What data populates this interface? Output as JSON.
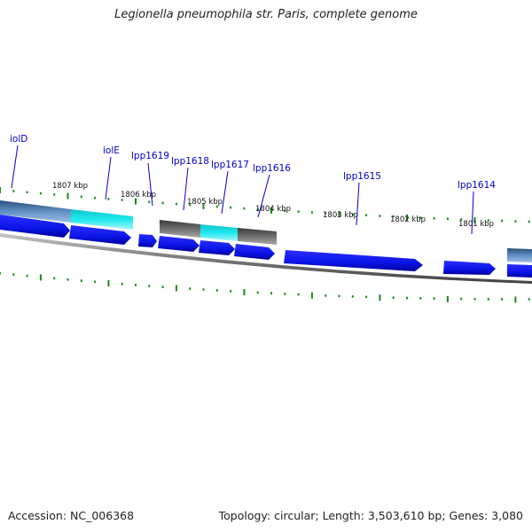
{
  "title": "Legionella pneumophila str. Paris, complete genome",
  "footer": {
    "accession": "Accession: NC_006368",
    "summary": "Topology: circular; Length: 3,503,610 bp; Genes: 3,080"
  },
  "colors": {
    "cds": "#0a14e6",
    "feature_blue": "#3f78b4",
    "feature_grey": "#6a6a6a",
    "highlight": "#19e4ee",
    "label": "#0000cc",
    "ticks": "#1a8a1a",
    "backbone": "#8a8a8a"
  },
  "gene_labels": [
    {
      "id": "iolD",
      "text": "iolD"
    },
    {
      "id": "iolE",
      "text": "iolE"
    },
    {
      "id": "lpp1619",
      "text": "lpp1619"
    },
    {
      "id": "lpp1618",
      "text": "lpp1618"
    },
    {
      "id": "lpp1617",
      "text": "lpp1617"
    },
    {
      "id": "lpp1616",
      "text": "lpp1616"
    },
    {
      "id": "lpp1615",
      "text": "lpp1615"
    },
    {
      "id": "lpp1614",
      "text": "lpp1614"
    }
  ],
  "kbp_labels": [
    "1807 kbp",
    "1806 kbp",
    "1805 kbp",
    "1804 kbp",
    "1803 kbp",
    "1802 kbp",
    "1801 kbp"
  ]
}
